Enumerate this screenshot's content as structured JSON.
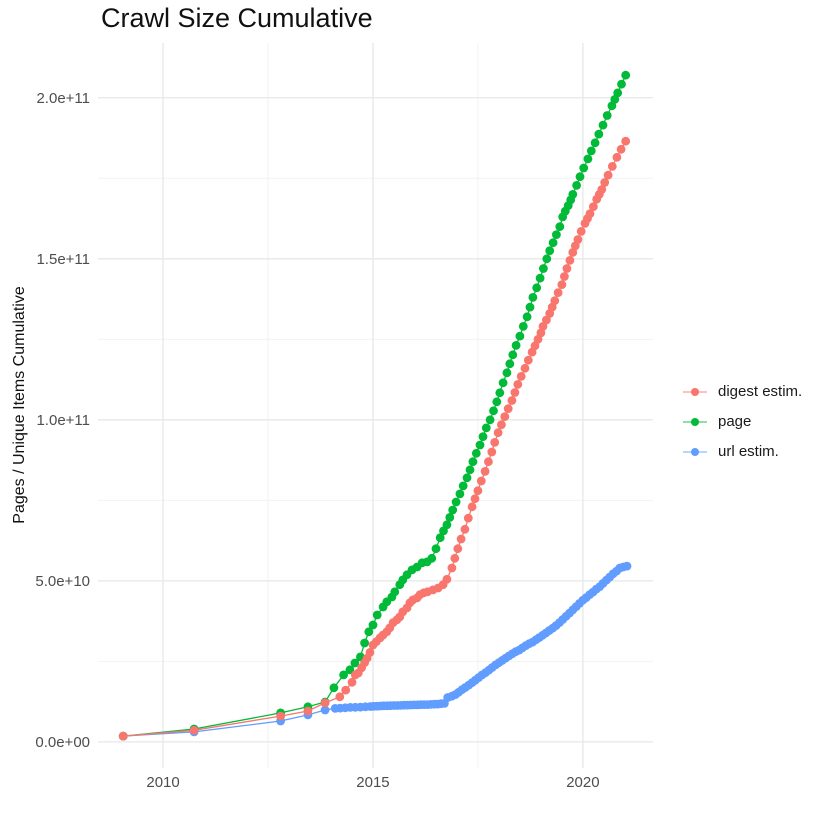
{
  "title": "Crawl Size Cumulative",
  "chart_data": {
    "type": "scatter",
    "title": "Crawl Size Cumulative",
    "xlabel": "",
    "ylabel": "Pages / Unique Items Cumulative",
    "value_unit_note": "y values are in units of 1e9 items; e.g. 207 = 2.07e+11",
    "axes": {
      "x_domain": [
        2008.45,
        2021.67
      ],
      "y_domain": [
        -8.1,
        217
      ],
      "x_ticks": [
        {
          "v": 2010,
          "label": "2010"
        },
        {
          "v": 2015,
          "label": "2015"
        },
        {
          "v": 2020,
          "label": "2020"
        }
      ],
      "y_ticks": [
        {
          "v": 0,
          "label": "0.0e+00"
        },
        {
          "v": 50,
          "label": "5.0e+10"
        },
        {
          "v": 100,
          "label": "1.0e+11"
        },
        {
          "v": 150,
          "label": "1.5e+11"
        },
        {
          "v": 200,
          "label": "2.0e+11"
        }
      ],
      "x_minor": [
        2012.5,
        2017.5
      ],
      "y_minor": [
        25,
        75,
        125,
        175
      ],
      "grid": true
    },
    "style": {
      "background": "#ffffff",
      "grid_major": "#e7e7e7",
      "grid_minor": "#f2f2f2",
      "tick_label_color": "#4d4d4d",
      "text_color": "#1a1a1a"
    },
    "legend": {
      "position": "right"
    },
    "series": [
      {
        "name": "digest estim.",
        "color": "#F8766D",
        "points": [
          [
            2009.05,
            1.8
          ],
          [
            2010.74,
            3.6
          ],
          [
            2012.8,
            8.0
          ],
          [
            2013.45,
            9.6
          ],
          [
            2013.86,
            12.1
          ],
          [
            2014.21,
            14.0
          ],
          [
            2014.35,
            16.1
          ],
          [
            2014.5,
            18.5
          ],
          [
            2014.58,
            20.8
          ],
          [
            2014.65,
            21.4
          ],
          [
            2014.73,
            23.0
          ],
          [
            2014.8,
            24.6
          ],
          [
            2014.86,
            26.0
          ],
          [
            2014.93,
            27.8
          ],
          [
            2015.0,
            30.1
          ],
          [
            2015.08,
            31.1
          ],
          [
            2015.17,
            32.3
          ],
          [
            2015.24,
            33.2
          ],
          [
            2015.33,
            34.2
          ],
          [
            2015.4,
            35.4
          ],
          [
            2015.48,
            37.0
          ],
          [
            2015.57,
            37.9
          ],
          [
            2015.64,
            38.8
          ],
          [
            2015.71,
            40.4
          ],
          [
            2015.81,
            41.6
          ],
          [
            2015.88,
            43.2
          ],
          [
            2015.95,
            44.1
          ],
          [
            2016.05,
            44.7
          ],
          [
            2016.12,
            45.7
          ],
          [
            2016.21,
            46.3
          ],
          [
            2016.3,
            46.6
          ],
          [
            2016.43,
            47.2
          ],
          [
            2016.55,
            47.8
          ],
          [
            2016.67,
            48.8
          ],
          [
            2016.76,
            50.5
          ],
          [
            2016.88,
            54.0
          ],
          [
            2016.95,
            57.0
          ],
          [
            2017.02,
            60.0
          ],
          [
            2017.1,
            63.0
          ],
          [
            2017.19,
            66.0
          ],
          [
            2017.27,
            69.5
          ],
          [
            2017.36,
            73.0
          ],
          [
            2017.43,
            75.5
          ],
          [
            2017.5,
            78.0
          ],
          [
            2017.58,
            81.0
          ],
          [
            2017.67,
            84.0
          ],
          [
            2017.75,
            87.0
          ],
          [
            2017.83,
            90.0
          ],
          [
            2017.9,
            93.0
          ],
          [
            2017.98,
            96.0
          ],
          [
            2018.06,
            98.5
          ],
          [
            2018.14,
            101.0
          ],
          [
            2018.22,
            103.5
          ],
          [
            2018.31,
            106.0
          ],
          [
            2018.38,
            108.5
          ],
          [
            2018.45,
            111.0
          ],
          [
            2018.53,
            113.5
          ],
          [
            2018.62,
            116.0
          ],
          [
            2018.7,
            118.5
          ],
          [
            2018.79,
            121.0
          ],
          [
            2018.86,
            123.0
          ],
          [
            2018.93,
            125.0
          ],
          [
            2019.0,
            127.0
          ],
          [
            2019.05,
            129.0
          ],
          [
            2019.13,
            131.0
          ],
          [
            2019.21,
            133.0
          ],
          [
            2019.27,
            135.0
          ],
          [
            2019.33,
            137.0
          ],
          [
            2019.41,
            139.5
          ],
          [
            2019.5,
            142.0
          ],
          [
            2019.56,
            144.5
          ],
          [
            2019.62,
            147.0
          ],
          [
            2019.69,
            149.5
          ],
          [
            2019.76,
            152.0
          ],
          [
            2019.82,
            154.0
          ],
          [
            2019.88,
            156.0
          ],
          [
            2019.96,
            158.5
          ],
          [
            2020.05,
            161.0
          ],
          [
            2020.11,
            162.5
          ],
          [
            2020.17,
            164.0
          ],
          [
            2020.25,
            166.2
          ],
          [
            2020.33,
            168.5
          ],
          [
            2020.39,
            170.0
          ],
          [
            2020.45,
            171.5
          ],
          [
            2020.52,
            173.7
          ],
          [
            2020.6,
            176.0
          ],
          [
            2020.7,
            178.7
          ],
          [
            2020.81,
            181.5
          ],
          [
            2020.91,
            184.0
          ],
          [
            2021.02,
            186.5
          ]
        ]
      },
      {
        "name": "page",
        "color": "#00BA38",
        "points": [
          [
            2009.05,
            1.8
          ],
          [
            2010.74,
            4.0
          ],
          [
            2012.8,
            9.0
          ],
          [
            2013.45,
            10.9
          ],
          [
            2013.86,
            12.4
          ],
          [
            2014.07,
            16.8
          ],
          [
            2014.3,
            20.8
          ],
          [
            2014.45,
            22.4
          ],
          [
            2014.57,
            24.5
          ],
          [
            2014.7,
            26.4
          ],
          [
            2014.8,
            30.7
          ],
          [
            2014.9,
            34.2
          ],
          [
            2015.0,
            36.3
          ],
          [
            2015.1,
            39.4
          ],
          [
            2015.24,
            41.9
          ],
          [
            2015.33,
            43.5
          ],
          [
            2015.45,
            45.0
          ],
          [
            2015.52,
            46.6
          ],
          [
            2015.64,
            48.8
          ],
          [
            2015.71,
            50.3
          ],
          [
            2015.81,
            51.9
          ],
          [
            2015.93,
            53.4
          ],
          [
            2016.05,
            54.3
          ],
          [
            2016.17,
            55.6
          ],
          [
            2016.29,
            55.9
          ],
          [
            2016.4,
            57.0
          ],
          [
            2016.5,
            60.0
          ],
          [
            2016.6,
            63.4
          ],
          [
            2016.68,
            65.5
          ],
          [
            2016.76,
            67.4
          ],
          [
            2016.83,
            69.7
          ],
          [
            2016.9,
            72.0
          ],
          [
            2016.98,
            74.5
          ],
          [
            2017.07,
            77.0
          ],
          [
            2017.15,
            79.5
          ],
          [
            2017.24,
            82.0
          ],
          [
            2017.31,
            84.5
          ],
          [
            2017.38,
            87.0
          ],
          [
            2017.46,
            89.6
          ],
          [
            2017.55,
            92.2
          ],
          [
            2017.62,
            94.8
          ],
          [
            2017.7,
            97.5
          ],
          [
            2017.79,
            100.0
          ],
          [
            2017.87,
            102.8
          ],
          [
            2017.95,
            105.6
          ],
          [
            2018.02,
            108.4
          ],
          [
            2018.1,
            111.5
          ],
          [
            2018.19,
            114.6
          ],
          [
            2018.26,
            117.4
          ],
          [
            2018.33,
            120.2
          ],
          [
            2018.41,
            123.1
          ],
          [
            2018.5,
            126.0
          ],
          [
            2018.58,
            129.0
          ],
          [
            2018.67,
            132.0
          ],
          [
            2018.74,
            135.0
          ],
          [
            2018.81,
            138.0
          ],
          [
            2018.9,
            141.0
          ],
          [
            2018.98,
            144.0
          ],
          [
            2019.06,
            147.0
          ],
          [
            2019.14,
            150.0
          ],
          [
            2019.21,
            152.5
          ],
          [
            2019.29,
            155.0
          ],
          [
            2019.37,
            157.5
          ],
          [
            2019.45,
            160.0
          ],
          [
            2019.52,
            163.0
          ],
          [
            2019.58,
            164.8
          ],
          [
            2019.65,
            166.5
          ],
          [
            2019.71,
            168.3
          ],
          [
            2019.76,
            170.0
          ],
          [
            2019.85,
            172.8
          ],
          [
            2019.93,
            175.5
          ],
          [
            2020.02,
            178.2
          ],
          [
            2020.12,
            181.0
          ],
          [
            2020.2,
            183.5
          ],
          [
            2020.29,
            186.0
          ],
          [
            2020.38,
            188.7
          ],
          [
            2020.48,
            191.5
          ],
          [
            2020.58,
            194.5
          ],
          [
            2020.69,
            197.5
          ],
          [
            2020.76,
            199.5
          ],
          [
            2020.83,
            201.5
          ],
          [
            2020.92,
            204.2
          ],
          [
            2021.02,
            207.0
          ]
        ]
      },
      {
        "name": "url estim.",
        "color": "#619CFF",
        "points": [
          [
            2009.05,
            1.8
          ],
          [
            2010.74,
            3.1
          ],
          [
            2012.8,
            6.5
          ],
          [
            2013.45,
            8.4
          ],
          [
            2013.86,
            9.9
          ],
          [
            2014.1,
            10.4
          ],
          [
            2014.22,
            10.5
          ],
          [
            2014.34,
            10.6
          ],
          [
            2014.46,
            10.7
          ],
          [
            2014.58,
            10.75
          ],
          [
            2014.7,
            10.8
          ],
          [
            2014.82,
            10.9
          ],
          [
            2014.94,
            11.0
          ],
          [
            2015.02,
            11.05
          ],
          [
            2015.1,
            11.1
          ],
          [
            2015.18,
            11.15
          ],
          [
            2015.26,
            11.2
          ],
          [
            2015.34,
            11.2
          ],
          [
            2015.42,
            11.25
          ],
          [
            2015.5,
            11.3
          ],
          [
            2015.58,
            11.3
          ],
          [
            2015.66,
            11.35
          ],
          [
            2015.74,
            11.4
          ],
          [
            2015.82,
            11.4
          ],
          [
            2015.9,
            11.45
          ],
          [
            2015.98,
            11.5
          ],
          [
            2016.06,
            11.5
          ],
          [
            2016.14,
            11.55
          ],
          [
            2016.22,
            11.6
          ],
          [
            2016.3,
            11.6
          ],
          [
            2016.38,
            11.65
          ],
          [
            2016.46,
            11.7
          ],
          [
            2016.54,
            11.75
          ],
          [
            2016.62,
            11.85
          ],
          [
            2016.7,
            11.95
          ],
          [
            2016.78,
            13.8
          ],
          [
            2016.88,
            14.2
          ],
          [
            2016.96,
            14.7
          ],
          [
            2017.04,
            15.4
          ],
          [
            2017.12,
            16.2
          ],
          [
            2017.2,
            16.9
          ],
          [
            2017.28,
            17.6
          ],
          [
            2017.36,
            18.4
          ],
          [
            2017.44,
            19.2
          ],
          [
            2017.52,
            20.0
          ],
          [
            2017.6,
            20.8
          ],
          [
            2017.68,
            21.5
          ],
          [
            2017.76,
            22.3
          ],
          [
            2017.84,
            23.1
          ],
          [
            2017.92,
            23.9
          ],
          [
            2018.0,
            24.6
          ],
          [
            2018.08,
            25.3
          ],
          [
            2018.16,
            26.0
          ],
          [
            2018.24,
            26.7
          ],
          [
            2018.32,
            27.4
          ],
          [
            2018.4,
            28.0
          ],
          [
            2018.48,
            28.5
          ],
          [
            2018.56,
            29.2
          ],
          [
            2018.64,
            29.9
          ],
          [
            2018.72,
            30.5
          ],
          [
            2018.8,
            31.0
          ],
          [
            2018.88,
            31.7
          ],
          [
            2018.96,
            32.4
          ],
          [
            2019.04,
            33.1
          ],
          [
            2019.12,
            33.8
          ],
          [
            2019.2,
            34.6
          ],
          [
            2019.28,
            35.3
          ],
          [
            2019.36,
            36.1
          ],
          [
            2019.44,
            37.0
          ],
          [
            2019.52,
            38.0
          ],
          [
            2019.6,
            39.0
          ],
          [
            2019.68,
            40.0
          ],
          [
            2019.76,
            41.0
          ],
          [
            2019.84,
            42.0
          ],
          [
            2019.92,
            43.0
          ],
          [
            2020.0,
            44.0
          ],
          [
            2020.08,
            44.8
          ],
          [
            2020.16,
            45.7
          ],
          [
            2020.24,
            46.5
          ],
          [
            2020.32,
            47.4
          ],
          [
            2020.4,
            48.2
          ],
          [
            2020.48,
            49.2
          ],
          [
            2020.56,
            50.2
          ],
          [
            2020.64,
            51.2
          ],
          [
            2020.72,
            52.2
          ],
          [
            2020.8,
            53.0
          ],
          [
            2020.88,
            54.0
          ],
          [
            2020.96,
            54.3
          ],
          [
            2021.05,
            54.6
          ]
        ]
      }
    ]
  }
}
